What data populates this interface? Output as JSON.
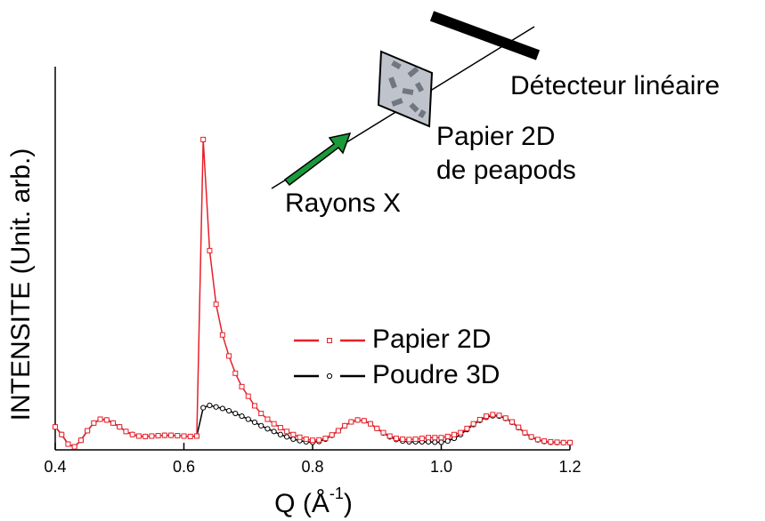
{
  "chart_data": {
    "type": "line",
    "y_label": "INTENSITE (Unit. arb.)",
    "x_label": {
      "text": "Q (Å",
      "superscript": "-1",
      "close": ")"
    },
    "annotations": [
      "Détecteur linéaire",
      "Papier 2D",
      "de peapods",
      "Rayons X"
    ],
    "xlim": [
      0.4,
      1.2
    ],
    "xticks": [
      0.4,
      0.6,
      0.8,
      {
        "value": 1,
        "label": "1.0"
      },
      1.2
    ],
    "ylim": [
      0,
      100
    ],
    "legend": "lower-right",
    "x": [
      0.4,
      0.41,
      0.42,
      0.43,
      0.44,
      0.45,
      0.46,
      0.47,
      0.48,
      0.49,
      0.5,
      0.51,
      0.52,
      0.53,
      0.54,
      0.55,
      0.56,
      0.57,
      0.58,
      0.59,
      0.6,
      0.61,
      0.62,
      0.63,
      0.64,
      0.65,
      0.66,
      0.67,
      0.68,
      0.69,
      0.7,
      0.71,
      0.72,
      0.73,
      0.74,
      0.75,
      0.76,
      0.77,
      0.78,
      0.79,
      0.8,
      0.81,
      0.82,
      0.83,
      0.84,
      0.85,
      0.86,
      0.87,
      0.88,
      0.89,
      0.9,
      0.91,
      0.92,
      0.93,
      0.94,
      0.95,
      0.96,
      0.97,
      0.98,
      0.99,
      1.0,
      1.01,
      1.02,
      1.03,
      1.04,
      1.05,
      1.06,
      1.07,
      1.08,
      1.09,
      1.1,
      1.11,
      1.12,
      1.13,
      1.14,
      1.15,
      1.16,
      1.17,
      1.18,
      1.19,
      1.2
    ],
    "series": [
      {
        "name": "Papier 2D",
        "color": "#e8202a",
        "marker": "square",
        "values": [
          6,
          4,
          1.5,
          0.8,
          2.5,
          5,
          7,
          8,
          7.8,
          7,
          6,
          4.8,
          4,
          3.6,
          3.5,
          3.6,
          3.7,
          3.8,
          3.8,
          3.7,
          3.6,
          3.5,
          3.6,
          81,
          52,
          38,
          30,
          24.5,
          20,
          16.5,
          14,
          11.5,
          9.5,
          8,
          6.8,
          5.8,
          4.8,
          4,
          3.3,
          2.8,
          2.5,
          2.6,
          3,
          3.9,
          5,
          6.3,
          7.3,
          7.8,
          7.6,
          6.8,
          5.6,
          4.5,
          3.6,
          3,
          2.8,
          2.7,
          2.8,
          3,
          3.2,
          3.2,
          3.2,
          3.5,
          4,
          4.5,
          5.6,
          6.8,
          7.9,
          8.8,
          9.2,
          9,
          8.3,
          7.3,
          5.9,
          4.5,
          3.4,
          2.7,
          2.3,
          2.1,
          2,
          1.9,
          1.9
        ]
      },
      {
        "name": "Poudre 3D",
        "color": "#000000",
        "marker": "circle",
        "values": [
          6,
          4,
          1.5,
          0.8,
          2.5,
          5,
          7,
          8,
          7.8,
          7,
          6,
          4.8,
          4,
          3.6,
          3.5,
          3.6,
          3.7,
          3.8,
          3.8,
          3.7,
          3.6,
          3.5,
          3.6,
          11,
          11.6,
          11.2,
          10.8,
          10.2,
          9.5,
          8.8,
          8,
          7.2,
          6.3,
          5.5,
          4.8,
          4,
          3.4,
          2.8,
          2.4,
          2.1,
          2,
          2.2,
          2.8,
          3.8,
          5,
          6.3,
          7.3,
          7.8,
          7.6,
          6.8,
          5.6,
          4.4,
          3.4,
          2.7,
          2.3,
          2.1,
          2.1,
          2.1,
          2.1,
          2,
          2,
          2.3,
          3,
          4,
          5.3,
          6.6,
          7.7,
          8.5,
          8.9,
          8.8,
          8.2,
          7.2,
          5.8,
          4.4,
          3.3,
          2.6,
          2.2,
          2,
          1.9,
          1.9,
          1.9
        ]
      }
    ]
  }
}
